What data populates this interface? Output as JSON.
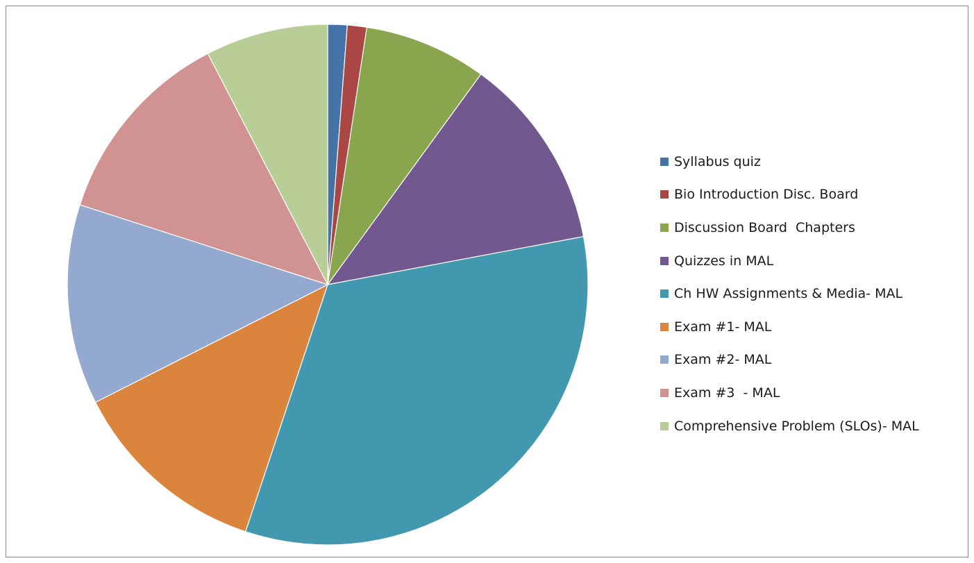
{
  "chart_data": {
    "type": "pie",
    "title": "",
    "start_angle_deg": 0,
    "direction": "clockwise",
    "legend_position": "right",
    "categories": [
      "Syllabus quiz",
      "Bio Introduction Disc. Board",
      "Discussion Board  Chapters",
      "Quizzes in MAL",
      "Ch HW Assignments & Media- MAL",
      "Exam #1- MAL",
      "Exam #2- MAL",
      "Exam #3  - MAL",
      "Comprehensive Problem (SLOs)- MAL"
    ],
    "values": [
      1.2,
      1.2,
      7.6,
      12,
      33,
      12.4,
      12.4,
      12.4,
      7.6
    ],
    "colors": [
      "#4572A7",
      "#AA4643",
      "#89A54E",
      "#71588F",
      "#4198AF",
      "#DB843D",
      "#93A9CF",
      "#D19392",
      "#B9CD96"
    ]
  }
}
